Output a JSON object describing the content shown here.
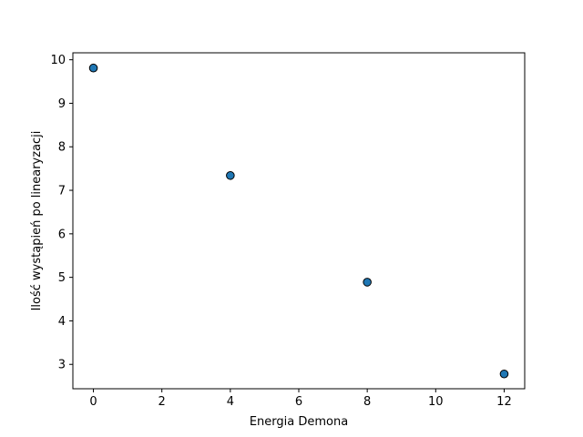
{
  "chart_data": {
    "type": "scatter",
    "title": "",
    "xlabel": "Energia Demona",
    "ylabel": "Ilość wystąpień po linearyzacji",
    "xlim": [
      -0.6,
      12.6
    ],
    "ylim": [
      2.44,
      10.16
    ],
    "x_ticks": [
      0,
      2,
      4,
      6,
      8,
      10,
      12
    ],
    "y_ticks": [
      3,
      4,
      5,
      6,
      7,
      8,
      9,
      10
    ],
    "grid": false,
    "marker_color": "#1f77b4",
    "marker_edge_color": "#000000",
    "points": [
      {
        "x": 0,
        "y": 9.81
      },
      {
        "x": 4,
        "y": 7.34
      },
      {
        "x": 8,
        "y": 4.89
      },
      {
        "x": 12,
        "y": 2.78
      }
    ]
  }
}
